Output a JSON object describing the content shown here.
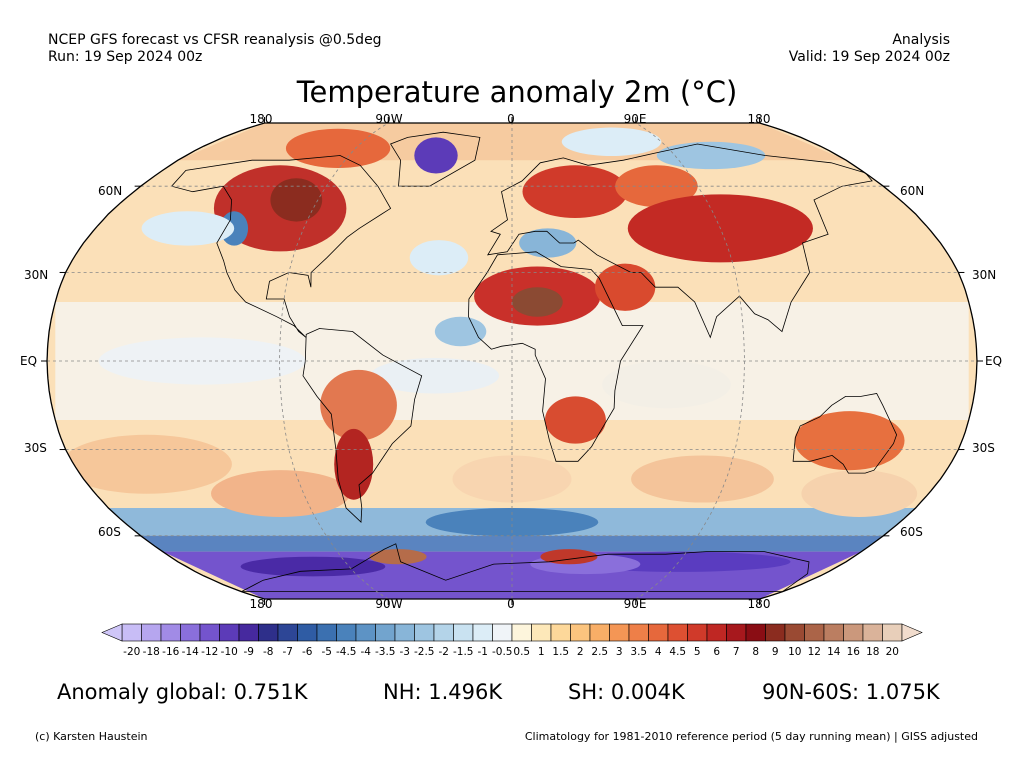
{
  "header": {
    "left_line1": "NCEP GFS forecast vs CFSR reanalysis @0.5deg",
    "left_line2": "Run: 19 Sep 2024 00z",
    "right_line1": "Analysis",
    "right_line2": "Valid: 19 Sep 2024 00z"
  },
  "title": "Temperature anomaly 2m (°C)",
  "map": {
    "lon_labels_top": [
      "180",
      "90W",
      "0",
      "90E",
      "180"
    ],
    "lon_labels_bottom": [
      "180",
      "90W",
      "0",
      "90E",
      "180"
    ],
    "lat_labels_left": [
      "60N",
      "30N",
      "EQ",
      "30S",
      "60S"
    ],
    "lat_labels_right": [
      "60N",
      "30N",
      "EQ",
      "30S",
      "60S"
    ]
  },
  "colorbar": {
    "labels": [
      "-20",
      "-18",
      "-16",
      "-14",
      "-12",
      "-10",
      "-9",
      "-8",
      "-7",
      "-6",
      "-5",
      "-4.5",
      "-4",
      "-3.5",
      "-3",
      "-2.5",
      "-2",
      "-1.5",
      "-1",
      "-0.5",
      "0.5",
      "1",
      "1.5",
      "2",
      "2.5",
      "3",
      "3.5",
      "4",
      "4.5",
      "5",
      "6",
      "7",
      "8",
      "9",
      "10",
      "12",
      "14",
      "16",
      "18",
      "20"
    ],
    "colors": [
      "#c8bdf6",
      "#b6a6ef",
      "#a18be6",
      "#8a6fdb",
      "#7454cd",
      "#5c3bb8",
      "#46299e",
      "#2e2f8a",
      "#2d4696",
      "#2f5ca4",
      "#3b70b0",
      "#4a82bb",
      "#5d93c5",
      "#72a4ce",
      "#88b5d8",
      "#9ec5e1",
      "#b4d4e9",
      "#c9e2f1",
      "#dcedf7",
      "#f0f4f8",
      "#fdf5dc",
      "#fde8b9",
      "#fdd89a",
      "#fbc47e",
      "#f8ae67",
      "#f49655",
      "#ee7f48",
      "#e6683c",
      "#dd5032",
      "#d03a2a",
      "#bf2723",
      "#a7181d",
      "#8a0d14",
      "#8b2c1f",
      "#9a4a33",
      "#ab6448",
      "#bb7e61",
      "#cb987c",
      "#dab39a",
      "#e8cfba"
    ],
    "low_arrow_color": "#cfc6f8",
    "high_arrow_color": "#f1dccd"
  },
  "stats": {
    "global": "Anomaly global: 0.751K",
    "nh": "NH: 1.496K",
    "sh": "SH: 0.004K",
    "polar": "90N-60S: 1.075K"
  },
  "footer": {
    "credit": "(c) Karsten Haustein",
    "climatology": "Climatology for 1981-2010 reference period (5 day running mean) | GISS adjusted"
  }
}
